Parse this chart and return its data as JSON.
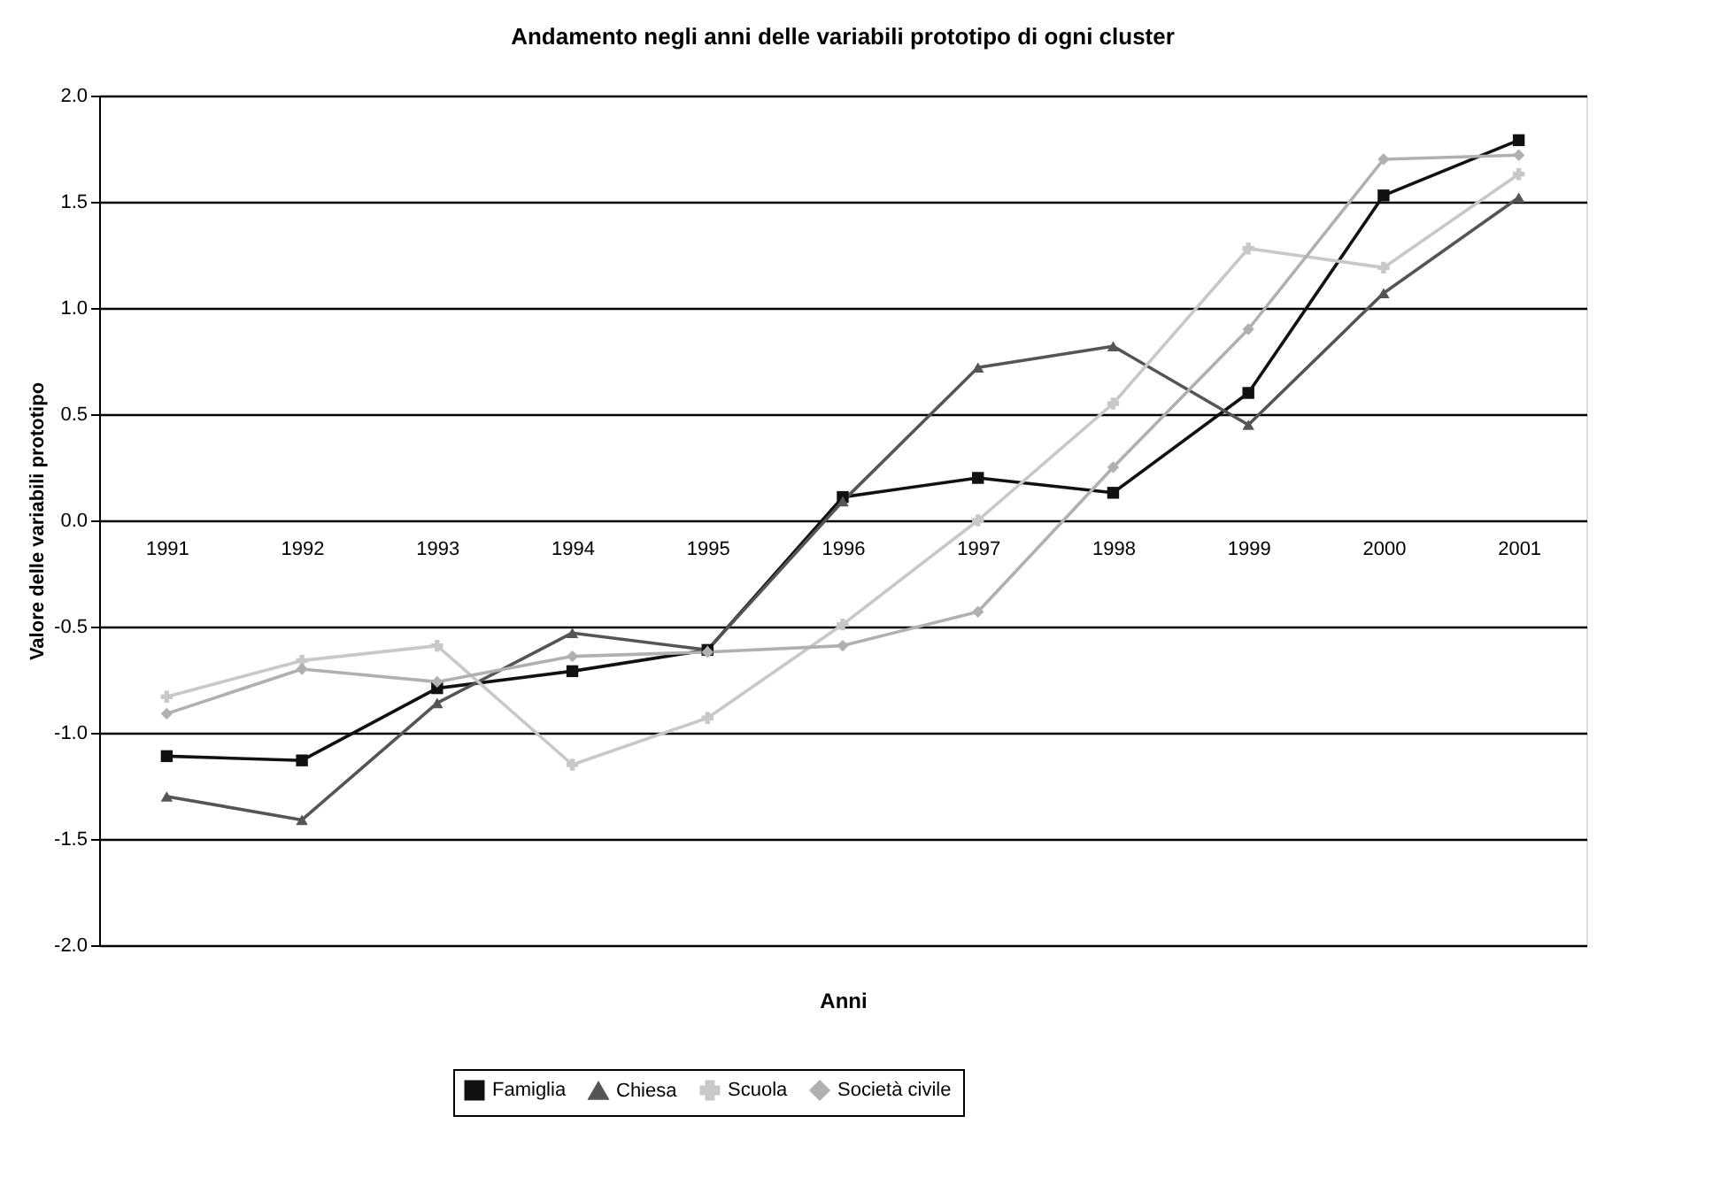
{
  "chart_data": {
    "type": "line",
    "title": "Andamento negli anni delle variabili prototipo di ogni cluster",
    "xlabel": "Anni",
    "ylabel": "Valore delle variabili prototipo",
    "categories": [
      "1991",
      "1992",
      "1993",
      "1994",
      "1995",
      "1996",
      "1997",
      "1998",
      "1999",
      "2000",
      "2001"
    ],
    "series": [
      {
        "name": "Famiglia",
        "color": "#111111",
        "marker": "square",
        "values": [
          -1.11,
          -1.13,
          -0.79,
          -0.71,
          -0.61,
          0.11,
          0.2,
          0.13,
          0.6,
          1.53,
          1.79
        ]
      },
      {
        "name": "Chiesa",
        "color": "#555555",
        "marker": "triangle",
        "values": [
          -1.3,
          -1.41,
          -0.86,
          -0.53,
          -0.61,
          0.09,
          0.72,
          0.82,
          0.45,
          1.07,
          1.52
        ]
      },
      {
        "name": "Scuola",
        "color": "#c8c8c8",
        "marker": "cross",
        "values": [
          -0.83,
          -0.66,
          -0.59,
          -1.15,
          -0.93,
          -0.49,
          0.0,
          0.55,
          1.28,
          1.19,
          1.63
        ]
      },
      {
        "name": "Società civile",
        "color": "#b0b0b0",
        "marker": "diamond",
        "values": [
          -0.91,
          -0.7,
          -0.76,
          -0.64,
          -0.62,
          -0.59,
          -0.43,
          0.25,
          0.9,
          1.7,
          1.72
        ]
      }
    ],
    "ylim": [
      -2.0,
      2.0
    ],
    "yticks": [
      {
        "value": -2.0,
        "label": "-2.0"
      },
      {
        "value": -1.5,
        "label": "-1.5"
      },
      {
        "value": -1.0,
        "label": "-1.0"
      },
      {
        "value": -0.5,
        "label": "-0.5"
      },
      {
        "value": 0.0,
        "label": "0.0"
      },
      {
        "value": 0.5,
        "label": "0.5"
      },
      {
        "value": 1.0,
        "label": "1.0"
      },
      {
        "value": 1.5,
        "label": "1.5"
      },
      {
        "value": 2.0,
        "label": "2.0"
      }
    ],
    "grid": "y",
    "legend": "bottom",
    "line_style": "solid"
  }
}
